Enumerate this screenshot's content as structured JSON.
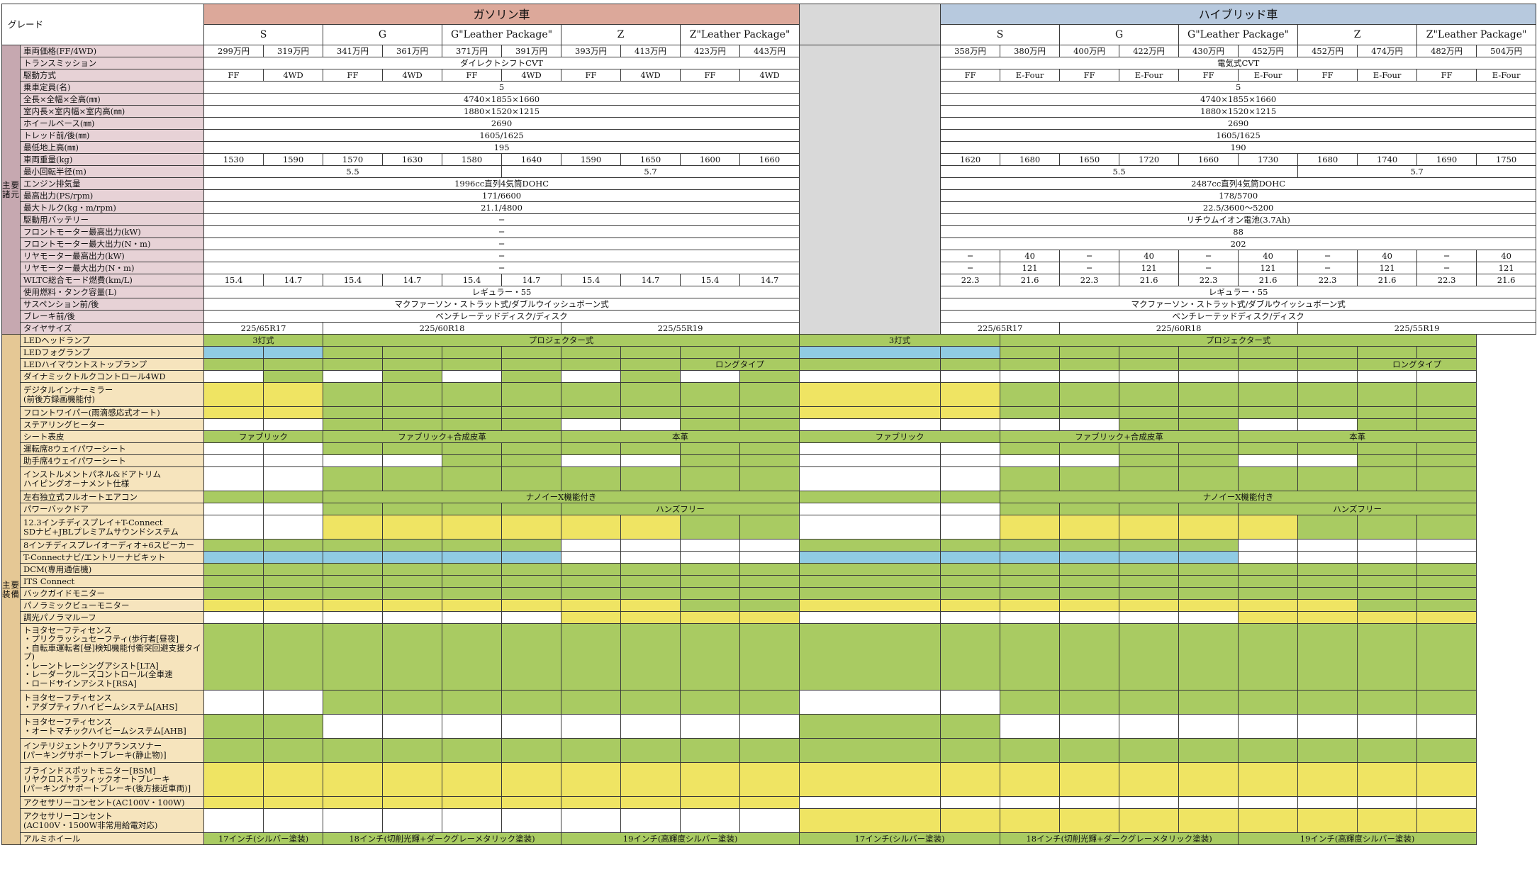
{
  "header": {
    "grade_label": "グレード",
    "gasoline": "ガソリン車",
    "hybrid": "ハイブリッド車",
    "gas_grades": [
      "S",
      "G",
      "G\"Leather Package\"",
      "Z",
      "Z\"Leather Package\""
    ],
    "hyb_grades": [
      "S",
      "G",
      "G\"Leather Package\"",
      "Z",
      "Z\"Leather Package\""
    ]
  },
  "sections": {
    "specs": "主要諸元",
    "equipment": "主要装備"
  },
  "colors": {
    "green": "#a9cb62",
    "yellow": "#efe463",
    "blue": "#90cbe3",
    "white": "#ffffff",
    "gap": "#d9d9d9"
  },
  "spec_rows": [
    {
      "label": "車両価格(FF/4WD)",
      "gas": [
        [
          "299万円",
          1
        ],
        [
          "319万円",
          1
        ],
        [
          "341万円",
          1
        ],
        [
          "361万円",
          1
        ],
        [
          "371万円",
          1
        ],
        [
          "391万円",
          1
        ],
        [
          "393万円",
          1
        ],
        [
          "413万円",
          1
        ],
        [
          "423万円",
          1
        ],
        [
          "443万円",
          1
        ]
      ],
      "hyb": [
        [
          "358万円",
          1
        ],
        [
          "380万円",
          1
        ],
        [
          "400万円",
          1
        ],
        [
          "422万円",
          1
        ],
        [
          "430万円",
          1
        ],
        [
          "452万円",
          1
        ],
        [
          "452万円",
          1
        ],
        [
          "474万円",
          1
        ],
        [
          "482万円",
          1
        ],
        [
          "504万円",
          1
        ]
      ]
    },
    {
      "label": "トランスミッション",
      "gas": [
        [
          "ダイレクトシフトCVT",
          10
        ]
      ],
      "hyb": [
        [
          "電気式CVT",
          10
        ]
      ]
    },
    {
      "label": "駆動方式",
      "gas": [
        [
          "FF",
          1
        ],
        [
          "4WD",
          1
        ],
        [
          "FF",
          1
        ],
        [
          "4WD",
          1
        ],
        [
          "FF",
          1
        ],
        [
          "4WD",
          1
        ],
        [
          "FF",
          1
        ],
        [
          "4WD",
          1
        ],
        [
          "FF",
          1
        ],
        [
          "4WD",
          1
        ]
      ],
      "hyb": [
        [
          "FF",
          1
        ],
        [
          "E-Four",
          1
        ],
        [
          "FF",
          1
        ],
        [
          "E-Four",
          1
        ],
        [
          "FF",
          1
        ],
        [
          "E-Four",
          1
        ],
        [
          "FF",
          1
        ],
        [
          "E-Four",
          1
        ],
        [
          "FF",
          1
        ],
        [
          "E-Four",
          1
        ]
      ]
    },
    {
      "label": "乗車定員(名)",
      "gas": [
        [
          "5",
          10
        ]
      ],
      "hyb": [
        [
          "5",
          10
        ]
      ]
    },
    {
      "label": "全長×全幅×全高(㎜)",
      "gas": [
        [
          "4740×1855×1660",
          10
        ]
      ],
      "hyb": [
        [
          "4740×1855×1660",
          10
        ]
      ]
    },
    {
      "label": "室内長×室内幅×室内高(㎜)",
      "gas": [
        [
          "1880×1520×1215",
          10
        ]
      ],
      "hyb": [
        [
          "1880×1520×1215",
          10
        ]
      ]
    },
    {
      "label": "ホイールベース(㎜)",
      "gas": [
        [
          "2690",
          10
        ]
      ],
      "hyb": [
        [
          "2690",
          10
        ]
      ]
    },
    {
      "label": "トレッド前/後(㎜)",
      "gas": [
        [
          "1605/1625",
          10
        ]
      ],
      "hyb": [
        [
          "1605/1625",
          10
        ]
      ]
    },
    {
      "label": "最低地上高(㎜)",
      "gas": [
        [
          "195",
          10
        ]
      ],
      "hyb": [
        [
          "190",
          10
        ]
      ]
    },
    {
      "label": "車両重量(kg)",
      "gas": [
        [
          "1530",
          1
        ],
        [
          "1590",
          1
        ],
        [
          "1570",
          1
        ],
        [
          "1630",
          1
        ],
        [
          "1580",
          1
        ],
        [
          "1640",
          1
        ],
        [
          "1590",
          1
        ],
        [
          "1650",
          1
        ],
        [
          "1600",
          1
        ],
        [
          "1660",
          1
        ]
      ],
      "hyb": [
        [
          "1620",
          1
        ],
        [
          "1680",
          1
        ],
        [
          "1650",
          1
        ],
        [
          "1720",
          1
        ],
        [
          "1660",
          1
        ],
        [
          "1730",
          1
        ],
        [
          "1680",
          1
        ],
        [
          "1740",
          1
        ],
        [
          "1690",
          1
        ],
        [
          "1750",
          1
        ]
      ]
    },
    {
      "label": "最小回転半径(m)",
      "gas": [
        [
          "5.5",
          5
        ],
        [
          "5.7",
          5
        ]
      ],
      "hyb": [
        [
          "5.5",
          6
        ],
        [
          "5.7",
          4
        ]
      ]
    },
    {
      "label": "エンジン排気量",
      "gas": [
        [
          "1996cc直列4気筒DOHC",
          10
        ]
      ],
      "hyb": [
        [
          "2487cc直列4気筒DOHC",
          10
        ]
      ]
    },
    {
      "label": "最高出力(PS/rpm)",
      "gas": [
        [
          "171/6600",
          10
        ]
      ],
      "hyb": [
        [
          "178/5700",
          10
        ]
      ]
    },
    {
      "label": "最大トルク(kg・m/rpm)",
      "gas": [
        [
          "21.1/4800",
          10
        ]
      ],
      "hyb": [
        [
          "22.5/3600〜5200",
          10
        ]
      ]
    },
    {
      "label": "駆動用バッテリー",
      "gas": [
        [
          "─",
          10
        ]
      ],
      "hyb": [
        [
          "リチウムイオン電池(3.7Ah)",
          10
        ]
      ]
    },
    {
      "label": "フロントモーター最高出力(kW)",
      "gas": [
        [
          "─",
          10
        ]
      ],
      "hyb": [
        [
          "88",
          10
        ]
      ]
    },
    {
      "label": "フロントモーター最大出力(N・m)",
      "gas": [
        [
          "─",
          10
        ]
      ],
      "hyb": [
        [
          "202",
          10
        ]
      ]
    },
    {
      "label": "リヤモーター最高出力(kW)",
      "gas": [
        [
          "─",
          10
        ]
      ],
      "hyb": [
        [
          "─",
          1
        ],
        [
          "40",
          1
        ],
        [
          "─",
          1
        ],
        [
          "40",
          1
        ],
        [
          "─",
          1
        ],
        [
          "40",
          1
        ],
        [
          "─",
          1
        ],
        [
          "40",
          1
        ],
        [
          "─",
          1
        ],
        [
          "40",
          1
        ]
      ]
    },
    {
      "label": "リヤモーター最大出力(N・m)",
      "gas": [
        [
          "─",
          10
        ]
      ],
      "hyb": [
        [
          "─",
          1
        ],
        [
          "121",
          1
        ],
        [
          "─",
          1
        ],
        [
          "121",
          1
        ],
        [
          "─",
          1
        ],
        [
          "121",
          1
        ],
        [
          "─",
          1
        ],
        [
          "121",
          1
        ],
        [
          "─",
          1
        ],
        [
          "121",
          1
        ]
      ]
    },
    {
      "label": "WLTC総合モード燃費(km/L)",
      "gas": [
        [
          "15.4",
          1
        ],
        [
          "14.7",
          1
        ],
        [
          "15.4",
          1
        ],
        [
          "14.7",
          1
        ],
        [
          "15.4",
          1
        ],
        [
          "14.7",
          1
        ],
        [
          "15.4",
          1
        ],
        [
          "14.7",
          1
        ],
        [
          "15.4",
          1
        ],
        [
          "14.7",
          1
        ]
      ],
      "hyb": [
        [
          "22.3",
          1
        ],
        [
          "21.6",
          1
        ],
        [
          "22.3",
          1
        ],
        [
          "21.6",
          1
        ],
        [
          "22.3",
          1
        ],
        [
          "21.6",
          1
        ],
        [
          "22.3",
          1
        ],
        [
          "21.6",
          1
        ],
        [
          "22.3",
          1
        ],
        [
          "21.6",
          1
        ]
      ]
    },
    {
      "label": "使用燃料・タンク容量(L)",
      "gas": [
        [
          "レギュラー・55",
          10
        ]
      ],
      "hyb": [
        [
          "レギュラー・55",
          10
        ]
      ]
    },
    {
      "label": "サスペンション前/後",
      "gas": [
        [
          "マクファーソン・ストラット式/ダブルウイッシュボーン式",
          10
        ]
      ],
      "hyb": [
        [
          "マクファーソン・ストラット式/ダブルウイッシュボーン式",
          10
        ]
      ]
    },
    {
      "label": "ブレーキ前/後",
      "gas": [
        [
          "ベンチレーテッドディスク/ディスク",
          10
        ]
      ],
      "hyb": [
        [
          "ベンチレーテッドディスク/ディスク",
          10
        ]
      ]
    },
    {
      "label": "タイヤサイズ",
      "gas": [
        [
          "225/65R17",
          2
        ],
        [
          "225/60R18",
          4
        ],
        [
          "225/55R19",
          4
        ]
      ],
      "hyb": [
        [
          "225/65R17",
          2
        ],
        [
          "225/60R18",
          4
        ],
        [
          "225/55R19",
          4
        ]
      ]
    }
  ],
  "equip_rows": [
    {
      "label": "LEDヘッドランプ",
      "h": 17,
      "gas": [
        [
          "3灯式",
          2,
          "g"
        ],
        [
          "プロジェクター式",
          8,
          "g"
        ]
      ],
      "hyb": [
        [
          "3灯式",
          2,
          "g"
        ],
        [
          "プロジェクター式",
          8,
          "g"
        ]
      ]
    },
    {
      "label": "LEDフォグランプ",
      "h": 17,
      "gas": "bbgggggggg",
      "hyb": "bbgggggggg"
    },
    {
      "label": "LEDハイマウントストップランプ",
      "h": 17,
      "gas": [
        [
          "",
          1,
          "g"
        ],
        [
          "",
          1,
          "g"
        ],
        [
          "",
          1,
          "g"
        ],
        [
          "",
          1,
          "g"
        ],
        [
          "",
          1,
          "g"
        ],
        [
          "",
          1,
          "g"
        ],
        [
          "",
          1,
          "g"
        ],
        [
          "",
          1,
          "g"
        ],
        [
          "ロングタイプ",
          2,
          "g"
        ]
      ],
      "hyb": [
        [
          "",
          1,
          "g"
        ],
        [
          "",
          1,
          "g"
        ],
        [
          "",
          1,
          "g"
        ],
        [
          "",
          1,
          "g"
        ],
        [
          "",
          1,
          "g"
        ],
        [
          "",
          1,
          "g"
        ],
        [
          "",
          1,
          "g"
        ],
        [
          "",
          1,
          "g"
        ],
        [
          "ロングタイプ",
          2,
          "g"
        ]
      ]
    },
    {
      "label": "ダイナミックトルクコントロール4WD",
      "h": 17,
      "gas": "wgwgwgwgwg",
      "hyb": "wwwwwwwwww"
    },
    {
      "label": "デジタルインナーミラー\n(前後方録画機能付)",
      "h": 34,
      "gas": "yygggggggg",
      "hyb": "yygggggggg"
    },
    {
      "label": "フロントワイパー(雨滴感応式オート)",
      "h": 17,
      "gas": "yygggggggg",
      "hyb": "yygggggggg"
    },
    {
      "label": "ステアリングヒーター",
      "h": 17,
      "gas": "wwggggwwgg",
      "hyb": "wwwwggwwgg"
    },
    {
      "label": "シート表皮",
      "h": 17,
      "gas": [
        [
          "ファブリック",
          2,
          "g"
        ],
        [
          "ファブリック+合成皮革",
          4,
          "g"
        ],
        [
          "本革",
          4,
          "g"
        ]
      ],
      "hyb": [
        [
          "ファブリック",
          2,
          "g"
        ],
        [
          "ファブリック+合成皮革",
          4,
          "g"
        ],
        [
          "本革",
          4,
          "g"
        ]
      ]
    },
    {
      "label": "運転席8ウェイパワーシート",
      "h": 17,
      "gas": "wwgggggggg",
      "hyb": "wwgggggggg"
    },
    {
      "label": "助手席4ウェイパワーシート",
      "h": 17,
      "gas": "wwwwggwwgg",
      "hyb": "wwwwggwwgg"
    },
    {
      "label": "インストルメントパネル&ドアトリム\nハイピングオーナメント仕様",
      "h": 34,
      "gas": "wwgggggggg",
      "hyb": "wwgggggggg"
    },
    {
      "label": "左右独立式フルオートエアコン",
      "h": 17,
      "gas": [
        [
          "",
          1,
          "g"
        ],
        [
          "",
          1,
          "g"
        ],
        [
          "ナノイーX機能付き",
          8,
          "g"
        ]
      ],
      "hyb": [
        [
          "",
          1,
          "g"
        ],
        [
          "",
          1,
          "g"
        ],
        [
          "ナノイーX機能付き",
          8,
          "g"
        ]
      ]
    },
    {
      "label": "パワーバックドア",
      "h": 17,
      "gas": [
        [
          "",
          1,
          "w"
        ],
        [
          "",
          1,
          "w"
        ],
        [
          "",
          1,
          "g"
        ],
        [
          "",
          1,
          "g"
        ],
        [
          "",
          1,
          "g"
        ],
        [
          "",
          1,
          "g"
        ],
        [
          "ハンズフリー",
          4,
          "g"
        ]
      ],
      "hyb": [
        [
          "",
          1,
          "w"
        ],
        [
          "",
          1,
          "w"
        ],
        [
          "",
          1,
          "g"
        ],
        [
          "",
          1,
          "g"
        ],
        [
          "",
          1,
          "g"
        ],
        [
          "",
          1,
          "g"
        ],
        [
          "ハンズフリー",
          4,
          "g"
        ]
      ]
    },
    {
      "label": "12.3インチディスプレイ+T-Connect\nSDナビ+JBLプレミアムサウンドシステム",
      "h": 34,
      "gas": "wwyyyyyygg",
      "hyb": "wwyyyyyggg"
    },
    {
      "label": "8インチディスプレイオーディオ+6スピーカー",
      "h": 17,
      "gas": "ggggggwwww",
      "hyb": "ggggggwwww"
    },
    {
      "label": "T-Connectナビ/エントリーナビキット",
      "h": 17,
      "gas": "bbbbbbwwww",
      "hyb": "bbbbbbwwww"
    },
    {
      "label": "DCM(専用通信機)",
      "h": 17,
      "gas": "gggggggggg",
      "hyb": "gggggggggg"
    },
    {
      "label": "ITS Connect",
      "h": 17,
      "gas": "gggggggggg",
      "hyb": "gggggggggg"
    },
    {
      "label": "バックガイドモニター",
      "h": 17,
      "gas": "gggggggggg",
      "hyb": "gggggggggg"
    },
    {
      "label": "パノラミックビューモニター",
      "h": 17,
      "gas": "yyyyyyyygg",
      "hyb": "yyyyyyyygg"
    },
    {
      "label": "調光パノラマルーフ",
      "h": 17,
      "gas": "wwwwwwyyyy",
      "hyb": "wwwwwwyyyy"
    },
    {
      "label": "トヨタセーフティセンス\n・プリクラッシュセーフティ(歩行者[昼夜]\n・自転車運転者[昼]検知機能付衝突回避支援タイプ)\n・レーントレーシングアシスト[LTA]\n・レーダークルーズコントロール(全車速\n・ロードサインアシスト[RSA]",
      "h": 94,
      "gas": "gggggggggg",
      "hyb": "gggggggggg"
    },
    {
      "label": "トヨタセーフティセンス\n・アダプティブハイビームシステム[AHS]",
      "h": 34,
      "gas": "wwgggggggg",
      "hyb": "wwgggggggg"
    },
    {
      "label": "トヨタセーフティセンス\n・オートマチックハイビームシステム[AHB]",
      "h": 34,
      "gas": "ggwwwwwwww",
      "hyb": "ggwwwwwwww"
    },
    {
      "label": "インテリジェントクリアランスソナー\n[パーキングサポートブレーキ(静止物)]",
      "h": 34,
      "gas": "gggggggggg",
      "hyb": "gggggggggg"
    },
    {
      "label": "ブラインドスポットモニター[BSM]\nリヤクロストラフィックオートブレーキ\n[パーキングサポートブレーキ(後方接近車両)]",
      "h": 48,
      "gas": "yyyyyyyyyy",
      "hyb": "yyyyyyyyyy"
    },
    {
      "label": "アクセサリーコンセント(AC100V・100W)",
      "h": 17,
      "gas": "yyyyyyyyyy",
      "hyb": "wwwwwwwwww"
    },
    {
      "label": "アクセサリーコンセント\n(AC100V・1500W非常用給電対応)",
      "h": 34,
      "gas": "wwwwwwwwww",
      "hyb": "yyyyyyyyyy"
    },
    {
      "label": "アルミホイール",
      "h": 17,
      "gas": [
        [
          "17インチ(シルバー塗装)",
          2,
          "g"
        ],
        [
          "18インチ(切削光輝+ダークグレーメタリック塗装)",
          4,
          "g"
        ],
        [
          "19インチ(高輝度シルバー塗装)",
          4,
          "g"
        ]
      ],
      "hyb": [
        [
          "17インチ(シルバー塗装)",
          2,
          "g"
        ],
        [
          "18インチ(切削光輝+ダークグレーメタリック塗装)",
          4,
          "g"
        ],
        [
          "19インチ(高輝度シルバー塗装)",
          4,
          "g"
        ]
      ]
    }
  ]
}
